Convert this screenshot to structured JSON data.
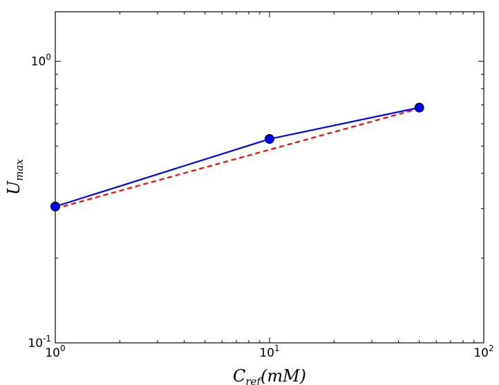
{
  "chart_data": {
    "type": "line",
    "x_scale": "log",
    "y_scale": "log",
    "xlim": [
      1,
      100
    ],
    "ylim": [
      0.1,
      1.5
    ],
    "x_ticks": [
      {
        "value": 1,
        "base": "10",
        "exp": "0"
      },
      {
        "value": 10,
        "base": "10",
        "exp": "1"
      },
      {
        "value": 100,
        "base": "10",
        "exp": "2"
      }
    ],
    "y_ticks": [
      {
        "value": 0.1,
        "base": "10",
        "exp": "-1"
      },
      {
        "value": 1,
        "base": "10",
        "exp": "0"
      }
    ],
    "xlabel": {
      "main": "C",
      "sub": "ref",
      "rest": "(mM)"
    },
    "ylabel": {
      "main": "U",
      "sub": "max"
    },
    "grid": false,
    "series": [
      {
        "style": "solid-with-markers",
        "color": "#0000ff",
        "x": [
          1,
          10,
          50
        ],
        "y": [
          0.305,
          0.53,
          0.685
        ]
      },
      {
        "style": "dashed",
        "color": "#ff0000",
        "x": [
          1,
          50
        ],
        "y": [
          0.3,
          0.68
        ]
      }
    ]
  }
}
